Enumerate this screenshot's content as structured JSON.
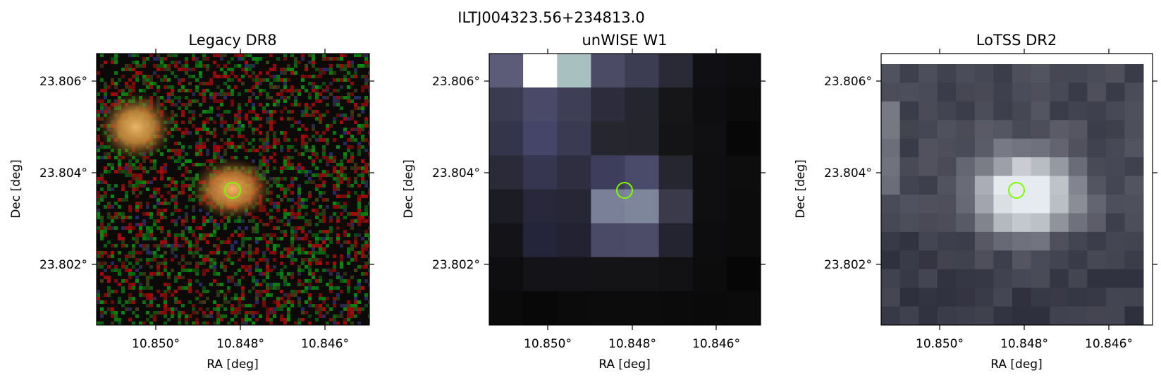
{
  "figure": {
    "suptitle": "ILTJ004323.56+234813.0"
  },
  "panels": [
    {
      "title": "Legacy DR8",
      "xlabel": "RA [deg]",
      "ylabel": "Dec [deg]",
      "xticks": [
        "10.850°",
        "10.848°",
        "10.846°"
      ],
      "yticks": [
        "23.806°",
        "23.804°",
        "23.802°"
      ],
      "image_kind": "optical color cutout, noisy red/green background with two orange galaxies",
      "marker_color": "#7cfc00"
    },
    {
      "title": "unWISE W1",
      "xlabel": "RA [deg]",
      "ylabel": "Dec [deg]",
      "xticks": [
        "10.850°",
        "10.848°",
        "10.846°"
      ],
      "yticks": [
        "23.806°",
        "23.804°",
        "23.802°"
      ],
      "image_kind": "coarse infrared pixel cutout, bright pixel at center",
      "marker_color": "#7cfc00"
    },
    {
      "title": "LoTSS DR2",
      "xlabel": "RA [deg]",
      "ylabel": "Dec [deg]",
      "xticks": [
        "10.850°",
        "10.848°",
        "10.846°"
      ],
      "yticks": [
        "23.806°",
        "23.804°",
        "23.802°"
      ],
      "image_kind": "radio pixel cutout, bright blob at center",
      "marker_color": "#7cfc00"
    }
  ]
}
